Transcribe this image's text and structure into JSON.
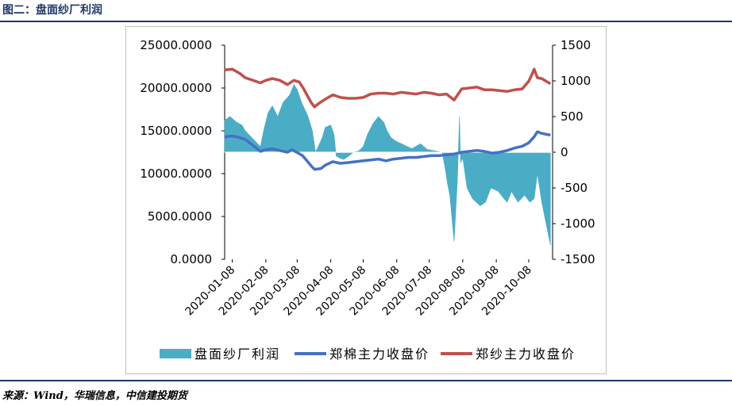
{
  "figure": {
    "title": "图二：盘面纱厂利润",
    "source": "来源：Wind，华瑞信息，中信建投期货"
  },
  "colors": {
    "profit": "#4bacc6",
    "cotton": "#4472c4",
    "yarn": "#c0504d",
    "title": "#1f3864",
    "axis": "#000000"
  },
  "chart_data": {
    "type": "area+line",
    "title": "",
    "xlabel": "",
    "ylabel": "",
    "x_tick_labels": [
      "2020-01-08",
      "2020-02-08",
      "2020-03-08",
      "2020-04-08",
      "2020-05-08",
      "2020-06-08",
      "2020-07-08",
      "2020-08-08",
      "2020-09-08",
      "2020-10-08"
    ],
    "x_range": [
      "2020-01-01",
      "2020-10-30"
    ],
    "left_axis": {
      "ylim": [
        0,
        25000
      ],
      "tick_labels": [
        "0.0000",
        "5000.0000",
        "10000.0000",
        "15000.0000",
        "20000.0000",
        "25000.0000"
      ]
    },
    "right_axis": {
      "ylim": [
        -1500,
        1500
      ],
      "tick_labels": [
        "-1500",
        "-1000",
        "-500",
        "0",
        "500",
        "1000",
        "1500"
      ]
    },
    "legend_position": "bottom",
    "series": [
      {
        "name": "盘面纱厂利润",
        "kind": "area",
        "axis": "right",
        "color": "#4bacc6",
        "points": [
          [
            "2020-01-01",
            450
          ],
          [
            "2020-01-06",
            500
          ],
          [
            "2020-01-12",
            420
          ],
          [
            "2020-01-17",
            380
          ],
          [
            "2020-01-20",
            300
          ],
          [
            "2020-02-03",
            80
          ],
          [
            "2020-02-06",
            300
          ],
          [
            "2020-02-10",
            550
          ],
          [
            "2020-02-14",
            650
          ],
          [
            "2020-02-19",
            500
          ],
          [
            "2020-02-24",
            700
          ],
          [
            "2020-03-01",
            800
          ],
          [
            "2020-03-05",
            950
          ],
          [
            "2020-03-08",
            880
          ],
          [
            "2020-03-12",
            700
          ],
          [
            "2020-03-18",
            500
          ],
          [
            "2020-03-22",
            300
          ],
          [
            "2020-03-25",
            0
          ],
          [
            "2020-03-31",
            200
          ],
          [
            "2020-04-03",
            350
          ],
          [
            "2020-04-08",
            380
          ],
          [
            "2020-04-11",
            250
          ],
          [
            "2020-04-13",
            -50
          ],
          [
            "2020-04-16",
            -80
          ],
          [
            "2020-04-20",
            -100
          ],
          [
            "2020-04-24",
            -60
          ],
          [
            "2020-04-29",
            0
          ],
          [
            "2020-05-04",
            20
          ],
          [
            "2020-05-08",
            80
          ],
          [
            "2020-05-12",
            250
          ],
          [
            "2020-05-17",
            400
          ],
          [
            "2020-05-22",
            500
          ],
          [
            "2020-05-27",
            420
          ],
          [
            "2020-05-30",
            300
          ],
          [
            "2020-06-03",
            200
          ],
          [
            "2020-06-08",
            150
          ],
          [
            "2020-06-15",
            100
          ],
          [
            "2020-06-22",
            50
          ],
          [
            "2020-06-30",
            120
          ],
          [
            "2020-07-06",
            40
          ],
          [
            "2020-07-13",
            20
          ],
          [
            "2020-07-20",
            0
          ],
          [
            "2020-07-23",
            -250
          ],
          [
            "2020-07-25",
            -450
          ],
          [
            "2020-07-27",
            -600
          ],
          [
            "2020-07-31",
            -1250
          ],
          [
            "2020-08-03",
            -400
          ],
          [
            "2020-08-05",
            500
          ],
          [
            "2020-08-06",
            -150
          ],
          [
            "2020-08-08",
            -80
          ],
          [
            "2020-08-12",
            -500
          ],
          [
            "2020-08-17",
            -650
          ],
          [
            "2020-08-24",
            -750
          ],
          [
            "2020-08-29",
            -700
          ],
          [
            "2020-09-03",
            -500
          ],
          [
            "2020-09-10",
            -550
          ],
          [
            "2020-09-15",
            -650
          ],
          [
            "2020-09-18",
            -700
          ],
          [
            "2020-09-22",
            -550
          ],
          [
            "2020-09-28",
            -700
          ],
          [
            "2020-10-04",
            -600
          ],
          [
            "2020-10-09",
            -700
          ],
          [
            "2020-10-13",
            -650
          ],
          [
            "2020-10-16",
            -300
          ],
          [
            "2020-10-20",
            -700
          ],
          [
            "2020-10-24",
            -1000
          ],
          [
            "2020-10-28",
            -1300
          ]
        ]
      },
      {
        "name": "郑棉主力收盘价",
        "kind": "line",
        "axis": "left",
        "color": "#4472c4",
        "points": [
          [
            "2020-01-01",
            14300
          ],
          [
            "2020-01-08",
            14400
          ],
          [
            "2020-01-15",
            14200
          ],
          [
            "2020-01-20",
            14000
          ],
          [
            "2020-02-03",
            12600
          ],
          [
            "2020-02-08",
            12800
          ],
          [
            "2020-02-14",
            12900
          ],
          [
            "2020-02-21",
            12700
          ],
          [
            "2020-02-28",
            12500
          ],
          [
            "2020-03-03",
            12800
          ],
          [
            "2020-03-09",
            12400
          ],
          [
            "2020-03-13",
            12100
          ],
          [
            "2020-03-17",
            11500
          ],
          [
            "2020-03-21",
            10900
          ],
          [
            "2020-03-24",
            10500
          ],
          [
            "2020-03-30",
            10600
          ],
          [
            "2020-04-03",
            11000
          ],
          [
            "2020-04-10",
            11400
          ],
          [
            "2020-04-17",
            11200
          ],
          [
            "2020-04-24",
            11300
          ],
          [
            "2020-05-01",
            11400
          ],
          [
            "2020-05-08",
            11500
          ],
          [
            "2020-05-15",
            11600
          ],
          [
            "2020-05-22",
            11700
          ],
          [
            "2020-05-29",
            11500
          ],
          [
            "2020-06-05",
            11700
          ],
          [
            "2020-06-12",
            11800
          ],
          [
            "2020-06-19",
            11900
          ],
          [
            "2020-06-26",
            11900
          ],
          [
            "2020-07-03",
            12000
          ],
          [
            "2020-07-10",
            12100
          ],
          [
            "2020-07-17",
            12100
          ],
          [
            "2020-07-24",
            12200
          ],
          [
            "2020-07-31",
            12300
          ],
          [
            "2020-08-07",
            12500
          ],
          [
            "2020-08-14",
            12600
          ],
          [
            "2020-08-21",
            12700
          ],
          [
            "2020-08-28",
            12600
          ],
          [
            "2020-09-04",
            12400
          ],
          [
            "2020-09-11",
            12500
          ],
          [
            "2020-09-18",
            12700
          ],
          [
            "2020-09-25",
            13000
          ],
          [
            "2020-10-02",
            13200
          ],
          [
            "2020-10-08",
            13600
          ],
          [
            "2020-10-13",
            14300
          ],
          [
            "2020-10-16",
            14900
          ],
          [
            "2020-10-20",
            14700
          ],
          [
            "2020-10-24",
            14600
          ],
          [
            "2020-10-28",
            14500
          ]
        ]
      },
      {
        "name": "郑纱主力收盘价",
        "kind": "line",
        "axis": "left",
        "color": "#c0504d",
        "points": [
          [
            "2020-01-01",
            22100
          ],
          [
            "2020-01-08",
            22200
          ],
          [
            "2020-01-15",
            21700
          ],
          [
            "2020-01-20",
            21200
          ],
          [
            "2020-02-03",
            20600
          ],
          [
            "2020-02-08",
            20900
          ],
          [
            "2020-02-14",
            21100
          ],
          [
            "2020-02-21",
            20900
          ],
          [
            "2020-02-28",
            20400
          ],
          [
            "2020-03-05",
            20900
          ],
          [
            "2020-03-10",
            20700
          ],
          [
            "2020-03-14",
            19900
          ],
          [
            "2020-03-17",
            19200
          ],
          [
            "2020-03-21",
            18300
          ],
          [
            "2020-03-24",
            17800
          ],
          [
            "2020-03-28",
            18200
          ],
          [
            "2020-04-03",
            18700
          ],
          [
            "2020-04-10",
            19200
          ],
          [
            "2020-04-17",
            18900
          ],
          [
            "2020-04-24",
            18800
          ],
          [
            "2020-05-01",
            18800
          ],
          [
            "2020-05-08",
            18900
          ],
          [
            "2020-05-15",
            19300
          ],
          [
            "2020-05-22",
            19400
          ],
          [
            "2020-05-29",
            19400
          ],
          [
            "2020-06-05",
            19300
          ],
          [
            "2020-06-12",
            19500
          ],
          [
            "2020-06-19",
            19400
          ],
          [
            "2020-06-26",
            19300
          ],
          [
            "2020-07-03",
            19500
          ],
          [
            "2020-07-10",
            19400
          ],
          [
            "2020-07-17",
            19200
          ],
          [
            "2020-07-24",
            19300
          ],
          [
            "2020-07-31",
            18600
          ],
          [
            "2020-08-07",
            19900
          ],
          [
            "2020-08-14",
            20000
          ],
          [
            "2020-08-21",
            20100
          ],
          [
            "2020-08-28",
            19800
          ],
          [
            "2020-09-04",
            19800
          ],
          [
            "2020-09-11",
            19700
          ],
          [
            "2020-09-18",
            19600
          ],
          [
            "2020-09-25",
            19800
          ],
          [
            "2020-10-02",
            19900
          ],
          [
            "2020-10-08",
            20800
          ],
          [
            "2020-10-11",
            21600
          ],
          [
            "2020-10-13",
            22200
          ],
          [
            "2020-10-16",
            21200
          ],
          [
            "2020-10-20",
            21100
          ],
          [
            "2020-10-24",
            20800
          ],
          [
            "2020-10-28",
            20500
          ]
        ]
      }
    ]
  }
}
